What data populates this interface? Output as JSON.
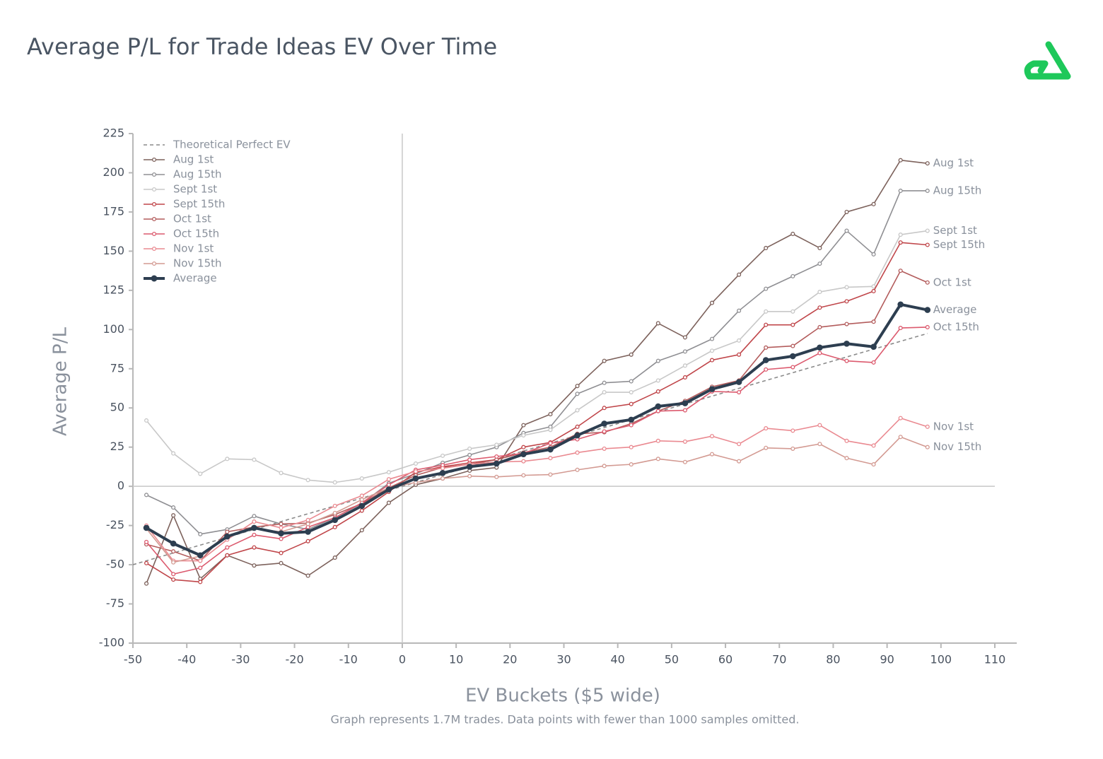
{
  "chart_data": {
    "type": "line",
    "title": "Average P/L for Trade Ideas EV Over Time",
    "x_label": "EV Buckets ($5 wide)",
    "y_label": "Average P/L",
    "footnote": "Graph represents 1.7M trades. Data points with fewer than 1000 samples omitted.",
    "legend": "upper left",
    "markers": true,
    "xlim": [
      -50,
      110
    ],
    "ylim": [
      -100,
      225
    ],
    "xticks": [
      -50,
      -40,
      -30,
      -20,
      -10,
      0,
      10,
      20,
      30,
      40,
      50,
      60,
      70,
      80,
      90,
      100,
      110
    ],
    "yticks": [
      -100,
      -75,
      -50,
      -25,
      0,
      25,
      50,
      75,
      100,
      125,
      150,
      175,
      200,
      225
    ],
    "x": [
      -47.5,
      -42.5,
      -37.5,
      -32.5,
      -27.5,
      -22.5,
      -17.5,
      -12.5,
      -7.5,
      -2.5,
      2.5,
      7.5,
      12.5,
      17.5,
      22.5,
      27.5,
      32.5,
      37.5,
      42.5,
      47.5,
      52.5,
      57.5,
      62.5,
      67.5,
      72.5,
      77.5,
      82.5,
      87.5,
      92.5,
      97.5
    ],
    "series": [
      {
        "name": "Theoretical Perfect EV",
        "color": "#8a8a8a",
        "dashed": true,
        "x": [
          -50,
          97.5
        ],
        "values": [
          -50,
          97.5
        ]
      },
      {
        "name": "Aug 1st",
        "color": "#7d625c",
        "values": [
          -62,
          -18.5,
          -59,
          -44,
          -50.5,
          -49,
          -57,
          -45.5,
          -28,
          -10.5,
          1,
          5,
          10,
          12,
          39,
          46,
          64,
          80,
          84,
          104,
          95,
          117,
          135,
          152,
          161,
          152,
          175,
          180,
          208,
          206
        ]
      },
      {
        "name": "Aug 15th",
        "color": "#8f8f93",
        "values": [
          -5.5,
          -13.5,
          -30.5,
          -27.5,
          -19,
          -24,
          -27.5,
          -20,
          -11,
          2,
          8,
          15,
          20,
          25,
          34,
          38,
          59,
          66,
          67,
          80,
          86,
          94,
          112,
          126,
          134,
          142,
          163,
          148,
          188.5,
          188.5
        ]
      },
      {
        "name": "Sept 1st",
        "color": "#c8c8c8",
        "values": [
          42,
          21,
          8,
          17.5,
          17,
          8.5,
          4,
          2.5,
          5,
          9,
          14.5,
          19.5,
          24,
          26.5,
          32.5,
          36,
          48.5,
          60,
          60,
          67.5,
          77,
          86.5,
          93,
          111.5,
          111.5,
          124,
          127,
          127.5,
          160.5,
          163
        ]
      },
      {
        "name": "Sept 15th",
        "color": "#c0464a",
        "values": [
          -49,
          -59.5,
          -61,
          -44,
          -39,
          -42.5,
          -35,
          -26,
          -15.5,
          -3.5,
          9,
          12.5,
          15,
          17,
          25,
          28,
          38,
          50,
          52.5,
          60.5,
          69.5,
          80.5,
          84,
          103,
          103,
          114,
          118,
          124.5,
          155.5,
          154
        ]
      },
      {
        "name": "Oct 1st",
        "color": "#b35c5c",
        "values": [
          -37,
          -41.5,
          -47.5,
          -29,
          -26,
          -24,
          -23.5,
          -18,
          -11,
          -1,
          7,
          12,
          14,
          17,
          21.5,
          25,
          33.5,
          34.5,
          40,
          48,
          54.5,
          63.5,
          67.5,
          88.5,
          89.5,
          101.5,
          103.5,
          105,
          137.5,
          130
        ]
      },
      {
        "name": "Oct 15th",
        "color": "#dc5a6e",
        "values": [
          -35.5,
          -56,
          -52,
          -39,
          -31,
          -33.5,
          -26,
          -20,
          -10.5,
          1,
          10.5,
          13.5,
          17,
          19,
          21,
          27.5,
          30,
          35,
          39,
          48,
          48.5,
          60.5,
          60,
          74.5,
          76,
          85,
          80,
          79,
          101,
          101.5
        ]
      },
      {
        "name": "Nov 1st",
        "color": "#ea8a91",
        "values": [
          -25,
          -47.5,
          -47.5,
          -34,
          -22.5,
          -26.5,
          -21.5,
          -12.5,
          -6,
          4.5,
          9.5,
          11.5,
          14,
          15.5,
          16,
          18,
          21.5,
          24,
          25,
          29,
          28.5,
          32,
          27,
          37,
          35.5,
          39,
          29,
          26,
          43.5,
          38
        ]
      },
      {
        "name": "Nov 15th",
        "color": "#d39a92",
        "values": [
          -27,
          -48.5,
          -44.5,
          -32.5,
          -27,
          -29,
          -24,
          -17,
          -8.5,
          -1,
          2.5,
          5,
          6.5,
          6,
          7,
          7.5,
          10.5,
          13,
          14,
          17.5,
          15.5,
          20.5,
          16,
          24.5,
          24,
          27,
          18,
          14,
          31.5,
          25
        ]
      },
      {
        "name": "Average",
        "color": "#2d3e50",
        "bold": true,
        "values": [
          -26.5,
          -36.5,
          -44,
          -32,
          -26.5,
          -30,
          -29,
          -21.5,
          -12.5,
          -2,
          5,
          8.5,
          12.5,
          14.5,
          20.5,
          23.5,
          32.5,
          40,
          42.5,
          51,
          53,
          62,
          66.5,
          80.5,
          83,
          88.5,
          91,
          89,
          116,
          112.5
        ]
      }
    ]
  }
}
